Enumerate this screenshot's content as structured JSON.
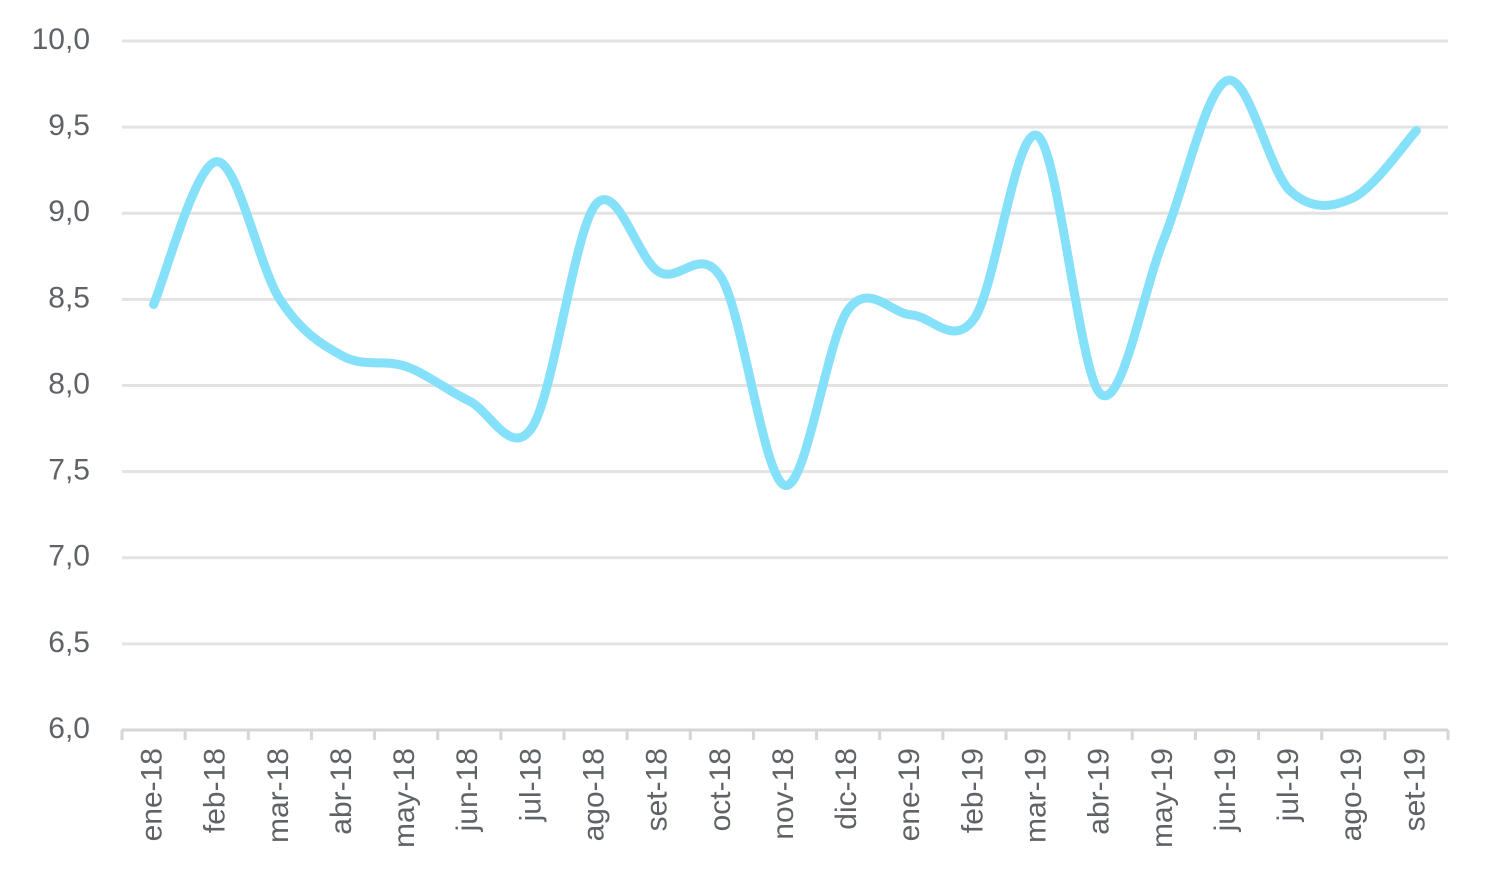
{
  "chart_data": {
    "type": "line",
    "title": "",
    "xlabel": "",
    "ylabel": "",
    "categories": [
      "ene-18",
      "feb-18",
      "mar-18",
      "abr-18",
      "may-18",
      "jun-18",
      "jul-18",
      "ago-18",
      "set-18",
      "oct-18",
      "nov-18",
      "dic-18",
      "ene-19",
      "feb-19",
      "mar-19",
      "abr-19",
      "may-19",
      "jun-19",
      "jul-19",
      "ago-19",
      "set-19"
    ],
    "series": [
      {
        "values": [
          8.47,
          9.3,
          8.5,
          8.17,
          8.11,
          7.91,
          7.76,
          9.05,
          8.66,
          8.62,
          7.42,
          8.44,
          8.41,
          8.39,
          9.45,
          7.95,
          8.85,
          9.77,
          9.13,
          9.09,
          9.48
        ],
        "color": "#85e0f9"
      }
    ],
    "ylim": [
      6.0,
      10.0
    ],
    "yticks": [
      "6,0",
      "6,5",
      "7,0",
      "7,5",
      "8,0",
      "8,5",
      "9,0",
      "9,5",
      "10,0"
    ],
    "grid": true,
    "legend": "none",
    "smooth": true
  }
}
